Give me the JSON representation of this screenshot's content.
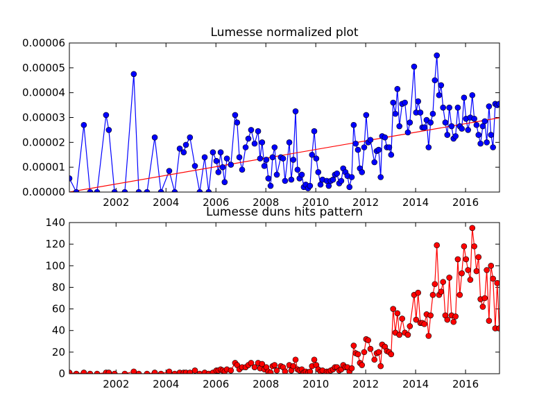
{
  "chart_data": [
    {
      "type": "line",
      "title": "Lumesse normalized plot",
      "xlim": [
        2000.13,
        2017.36
      ],
      "xticks": [
        2002,
        2004,
        2006,
        2008,
        2010,
        2012,
        2014,
        2016
      ],
      "ylim": [
        0,
        6e-05
      ],
      "yticks": [
        {
          "value": 0,
          "label": "0.00000"
        },
        {
          "value": 1e-05,
          "label": "0.00001"
        },
        {
          "value": 2e-05,
          "label": "0.00002"
        },
        {
          "value": 3e-05,
          "label": "0.00003"
        },
        {
          "value": 4e-05,
          "label": "0.00004"
        },
        {
          "value": 5e-05,
          "label": "0.00005"
        },
        {
          "value": 6e-05,
          "label": "0.00006"
        }
      ],
      "color": "#0000ff",
      "x": [
        2000.13,
        2000.41,
        2000.71,
        2000.96,
        2001.24,
        2001.6,
        2001.71,
        2001.94,
        2002.35,
        2002.71,
        2002.91,
        2003.24,
        2003.55,
        2003.8,
        2004.13,
        2004.35,
        2004.55,
        2004.71,
        2004.8,
        2004.96,
        2005.16,
        2005.35,
        2005.55,
        2005.71,
        2005.88,
        2006.02,
        2006.1,
        2006.19,
        2006.27,
        2006.35,
        2006.44,
        2006.6,
        2006.77,
        2006.85,
        2006.94,
        2007.05,
        2007.19,
        2007.3,
        2007.41,
        2007.55,
        2007.69,
        2007.77,
        2007.85,
        2007.94,
        2008.02,
        2008.1,
        2008.19,
        2008.27,
        2008.35,
        2008.44,
        2008.6,
        2008.69,
        2008.77,
        2008.94,
        2009.02,
        2009.1,
        2009.19,
        2009.27,
        2009.35,
        2009.44,
        2009.52,
        2009.6,
        2009.69,
        2009.77,
        2009.85,
        2009.94,
        2010.02,
        2010.1,
        2010.19,
        2010.27,
        2010.44,
        2010.52,
        2010.6,
        2010.69,
        2010.77,
        2010.85,
        2010.94,
        2011.02,
        2011.1,
        2011.19,
        2011.27,
        2011.35,
        2011.44,
        2011.52,
        2011.6,
        2011.69,
        2011.77,
        2011.85,
        2011.94,
        2012.02,
        2012.1,
        2012.19,
        2012.35,
        2012.44,
        2012.52,
        2012.6,
        2012.66,
        2012.77,
        2012.85,
        2012.94,
        2013.02,
        2013.1,
        2013.19,
        2013.27,
        2013.35,
        2013.46,
        2013.57,
        2013.69,
        2013.77,
        2013.94,
        2014.02,
        2014.1,
        2014.19,
        2014.27,
        2014.35,
        2014.44,
        2014.52,
        2014.6,
        2014.69,
        2014.77,
        2014.85,
        2014.94,
        2015.02,
        2015.1,
        2015.19,
        2015.27,
        2015.35,
        2015.44,
        2015.52,
        2015.6,
        2015.69,
        2015.77,
        2015.85,
        2015.94,
        2016.02,
        2016.1,
        2016.19,
        2016.27,
        2016.35,
        2016.44,
        2016.52,
        2016.6,
        2016.69,
        2016.77,
        2016.85,
        2016.94,
        2017.02,
        2017.1,
        2017.19,
        2017.27,
        2017.35
      ],
      "values": [
        5.5e-06,
        0,
        2.7e-05,
        0,
        0,
        3.1e-05,
        2.5e-05,
        0,
        0,
        4.75e-05,
        0,
        0,
        2.2e-05,
        0,
        8.5e-06,
        0,
        1.75e-05,
        1.6e-05,
        1.9e-05,
        2.2e-05,
        1.05e-05,
        0,
        1.4e-05,
        0,
        1.6e-05,
        1.25e-05,
        8e-06,
        1.6e-05,
        1e-05,
        4e-06,
        1.35e-05,
        1.1e-05,
        3.1e-05,
        2.8e-05,
        1.4e-05,
        9e-06,
        1.8e-05,
        2.15e-05,
        2.5e-05,
        1.95e-05,
        2.45e-05,
        1.35e-05,
        2e-05,
        1.05e-05,
        1.3e-05,
        5.5e-06,
        2.5e-06,
        1.4e-05,
        1.8e-05,
        7e-06,
        1.4e-05,
        1.35e-05,
        4.5e-06,
        2e-05,
        5e-06,
        1.3e-05,
        3.25e-05,
        9e-06,
        5.5e-06,
        7e-06,
        2e-06,
        3e-06,
        1.5e-06,
        2.5e-06,
        1.5e-05,
        2.45e-05,
        1.35e-05,
        8e-06,
        3e-06,
        5e-06,
        4.5e-06,
        2.5e-06,
        4.5e-06,
        5e-06,
        7e-06,
        7.5e-06,
        3.5e-06,
        4.5e-06,
        9.5e-06,
        8e-06,
        6.5e-06,
        2e-06,
        6e-06,
        2.7e-05,
        1.95e-05,
        1.7e-05,
        9.5e-06,
        8e-06,
        1.8e-05,
        3.1e-05,
        2e-05,
        2.1e-05,
        1.2e-05,
        1.65e-05,
        1.7e-05,
        6e-06,
        2.25e-05,
        2.2e-05,
        1.8e-05,
        1.8e-05,
        1.5e-05,
        3.6e-05,
        3.15e-05,
        4.15e-05,
        2.65e-05,
        3.55e-05,
        3.6e-05,
        2.4e-05,
        2.8e-05,
        5.05e-05,
        3.2e-05,
        3.65e-05,
        3.2e-05,
        2.6e-05,
        2.6e-05,
        2.9e-05,
        1.8e-05,
        2.8e-05,
        3.15e-05,
        4.5e-05,
        5.5e-05,
        3.9e-05,
        4.3e-05,
        3.4e-05,
        2.8e-05,
        2.3e-05,
        3.4e-05,
        2.65e-05,
        2.15e-05,
        2.25e-05,
        3.4e-05,
        2.65e-05,
        2.55e-05,
        3.8e-05,
        2.95e-05,
        2.5e-05,
        3e-05,
        3.9e-05,
        2.95e-05,
        2.7e-05,
        2.3e-05,
        1.95e-05,
        2.65e-05,
        2.85e-05,
        2e-05,
        3.45e-05,
        2.3e-05,
        1.8e-05,
        3.55e-05,
        3.5e-05,
        3.55e-05
      ],
      "trend": {
        "color": "#ff0000",
        "x": [
          2000.13,
          2017.36
        ],
        "values": [
          0,
          2.99e-05
        ]
      }
    },
    {
      "type": "line",
      "title": "Lumesse duns hits pattern",
      "xlim": [
        2000.13,
        2017.36
      ],
      "xticks": [
        2002,
        2004,
        2006,
        2008,
        2010,
        2012,
        2014,
        2016
      ],
      "ylim": [
        0,
        140
      ],
      "yticks": [
        0,
        20,
        40,
        60,
        80,
        100,
        120,
        140
      ],
      "color": "#ff0000",
      "x": [
        2000.13,
        2000.41,
        2000.71,
        2000.96,
        2001.24,
        2001.6,
        2001.71,
        2001.94,
        2002.35,
        2002.71,
        2002.91,
        2003.24,
        2003.55,
        2003.8,
        2004.13,
        2004.35,
        2004.55,
        2004.71,
        2004.8,
        2004.96,
        2005.16,
        2005.35,
        2005.55,
        2005.71,
        2005.88,
        2006.02,
        2006.1,
        2006.19,
        2006.27,
        2006.35,
        2006.44,
        2006.6,
        2006.77,
        2006.85,
        2006.94,
        2007.05,
        2007.19,
        2007.3,
        2007.41,
        2007.55,
        2007.69,
        2007.77,
        2007.85,
        2007.94,
        2008.02,
        2008.1,
        2008.19,
        2008.27,
        2008.35,
        2008.44,
        2008.6,
        2008.69,
        2008.77,
        2008.94,
        2009.02,
        2009.1,
        2009.19,
        2009.27,
        2009.35,
        2009.44,
        2009.52,
        2009.6,
        2009.69,
        2009.77,
        2009.85,
        2009.94,
        2010.02,
        2010.1,
        2010.19,
        2010.27,
        2010.44,
        2010.52,
        2010.6,
        2010.69,
        2010.77,
        2010.85,
        2010.94,
        2011.02,
        2011.1,
        2011.19,
        2011.27,
        2011.35,
        2011.44,
        2011.52,
        2011.6,
        2011.69,
        2011.77,
        2011.85,
        2011.94,
        2012.02,
        2012.1,
        2012.19,
        2012.35,
        2012.44,
        2012.52,
        2012.6,
        2012.66,
        2012.77,
        2012.85,
        2012.94,
        2013.02,
        2013.1,
        2013.19,
        2013.27,
        2013.35,
        2013.46,
        2013.57,
        2013.69,
        2013.77,
        2013.94,
        2014.02,
        2014.1,
        2014.19,
        2014.27,
        2014.35,
        2014.44,
        2014.52,
        2014.6,
        2014.69,
        2014.77,
        2014.85,
        2014.94,
        2015.02,
        2015.1,
        2015.19,
        2015.27,
        2015.35,
        2015.44,
        2015.52,
        2015.6,
        2015.69,
        2015.77,
        2015.85,
        2015.94,
        2016.02,
        2016.1,
        2016.19,
        2016.27,
        2016.35,
        2016.44,
        2016.52,
        2016.6,
        2016.69,
        2016.77,
        2016.85,
        2016.94,
        2017.02,
        2017.1,
        2017.19,
        2017.27,
        2017.35
      ],
      "values": [
        1,
        0,
        1,
        0,
        0,
        1,
        1,
        0,
        0,
        2,
        0,
        0,
        1,
        0,
        2,
        0,
        1,
        1,
        1,
        1,
        3,
        0,
        1,
        0,
        1,
        3,
        3,
        4,
        3,
        2,
        4,
        3,
        10,
        8,
        4,
        6,
        6,
        8,
        10,
        6,
        10,
        5,
        9,
        4,
        6,
        2,
        1,
        7,
        8,
        3,
        7,
        6,
        2,
        8,
        3,
        7,
        13,
        4,
        3,
        4,
        1,
        2,
        1,
        2,
        7,
        13,
        8,
        4,
        2,
        3,
        2,
        2,
        3,
        4,
        6,
        6,
        3,
        4,
        8,
        6,
        6,
        2,
        5,
        26,
        19,
        18,
        10,
        8,
        20,
        32,
        31,
        23,
        13,
        19,
        20,
        7,
        27,
        25,
        21,
        20,
        18,
        60,
        38,
        56,
        36,
        51,
        38,
        36,
        44,
        73,
        50,
        75,
        47,
        47,
        46,
        55,
        35,
        54,
        73,
        83,
        119,
        73,
        76,
        85,
        54,
        50,
        89,
        54,
        48,
        53,
        106,
        73,
        93,
        118,
        106,
        96,
        87,
        135,
        118,
        95,
        108,
        69,
        62,
        70,
        96,
        49,
        100,
        88,
        42,
        84,
        42
      ]
    }
  ]
}
